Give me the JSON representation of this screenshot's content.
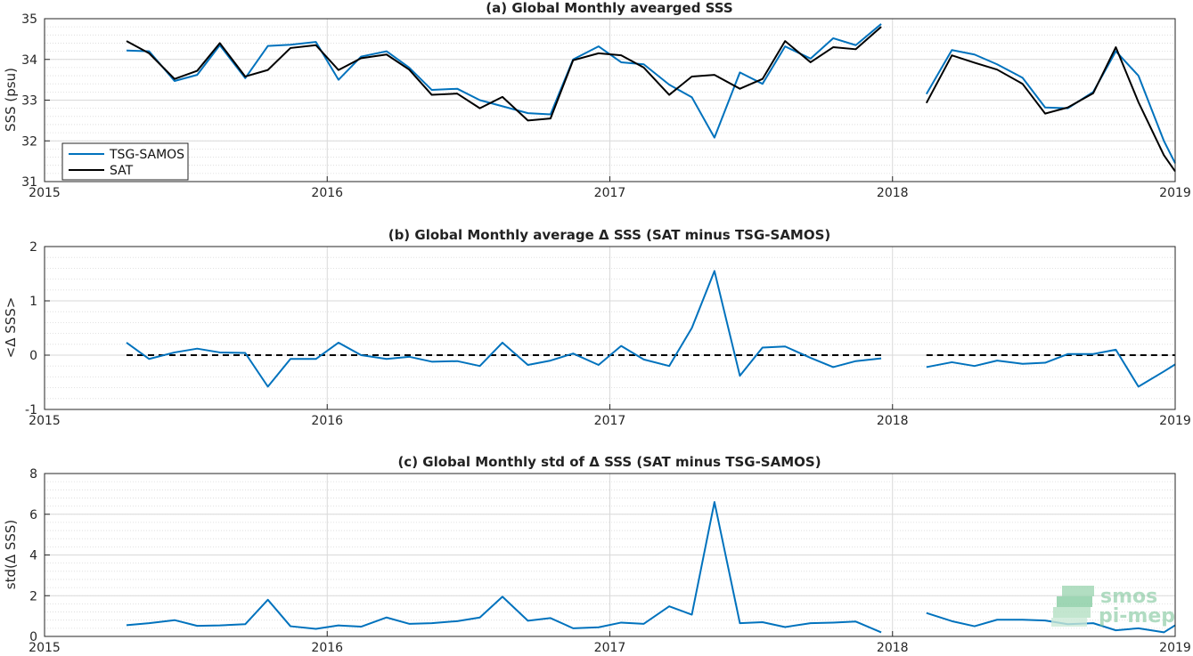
{
  "watermark": {
    "line1": "smos",
    "line2": "pi-mep",
    "color": "#6dbf8f"
  },
  "colors": {
    "tsg": "#0072BD",
    "sat": "#000000",
    "zero_line": "#000000",
    "grid": "#d9d9d9"
  },
  "chart_data": [
    {
      "id": "a",
      "type": "line",
      "title": "(a) Global Monthly avearged SSS",
      "ylabel": "SSS (psu)",
      "xlim": [
        2015,
        2019
      ],
      "ylim": [
        31,
        35
      ],
      "xticks": [
        2015,
        2016,
        2017,
        2018,
        2019
      ],
      "xtick_labels": [
        "2015",
        "2016",
        "2017",
        "2018",
        "2019"
      ],
      "yticks": [
        31,
        32,
        33,
        34,
        35
      ],
      "ytick_labels": [
        "31",
        "32",
        "33",
        "34",
        "35"
      ],
      "grid": true,
      "legend": {
        "placement": "bottom-left",
        "entries": [
          "TSG-SAMOS",
          "SAT"
        ]
      },
      "series": [
        {
          "name": "TSG-SAMOS",
          "color": "#0072BD",
          "x": [
            2015.29,
            2015.37,
            2015.46,
            2015.54,
            2015.62,
            2015.71,
            2015.79,
            2015.87,
            2015.96,
            2016.04,
            2016.12,
            2016.21,
            2016.29,
            2016.37,
            2016.46,
            2016.54,
            2016.62,
            2016.71,
            2016.79,
            2016.87,
            2016.96,
            2017.04,
            2017.12,
            2017.21,
            2017.29,
            2017.37,
            2017.46,
            2017.54,
            2017.62,
            2017.71,
            2017.79,
            2017.87,
            2017.96,
            null,
            2018.12,
            2018.21,
            2018.29,
            2018.37,
            2018.46,
            2018.54,
            2018.62,
            2018.71,
            2018.79,
            2018.87,
            2018.96,
            2019.0
          ],
          "y": [
            34.22,
            34.2,
            33.47,
            33.62,
            34.35,
            33.54,
            34.33,
            34.36,
            34.43,
            33.5,
            34.07,
            34.2,
            33.8,
            33.25,
            33.28,
            33.0,
            32.85,
            32.68,
            32.65,
            34.0,
            34.32,
            33.93,
            33.88,
            33.38,
            33.07,
            32.08,
            33.68,
            33.4,
            34.32,
            34.02,
            34.52,
            34.35,
            34.87,
            null,
            33.15,
            34.23,
            34.12,
            33.88,
            33.55,
            32.82,
            32.8,
            33.2,
            34.2,
            33.6,
            32.0,
            31.45
          ]
        },
        {
          "name": "SAT",
          "color": "#000000",
          "x": [
            2015.29,
            2015.37,
            2015.46,
            2015.54,
            2015.62,
            2015.71,
            2015.79,
            2015.87,
            2015.96,
            2016.04,
            2016.12,
            2016.21,
            2016.29,
            2016.37,
            2016.46,
            2016.54,
            2016.62,
            2016.71,
            2016.79,
            2016.87,
            2016.96,
            2017.04,
            2017.12,
            2017.21,
            2017.29,
            2017.37,
            2017.46,
            2017.54,
            2017.62,
            2017.71,
            2017.79,
            2017.87,
            2017.96,
            null,
            2018.12,
            2018.21,
            2018.29,
            2018.37,
            2018.46,
            2018.54,
            2018.62,
            2018.71,
            2018.79,
            2018.87,
            2018.96,
            2019.0
          ],
          "y": [
            34.45,
            34.15,
            33.52,
            33.72,
            34.4,
            33.58,
            33.74,
            34.28,
            34.35,
            33.74,
            34.03,
            34.12,
            33.75,
            33.13,
            33.16,
            32.8,
            33.08,
            32.5,
            32.55,
            33.98,
            34.15,
            34.1,
            33.8,
            33.13,
            33.58,
            33.62,
            33.28,
            33.52,
            34.45,
            33.93,
            34.3,
            34.25,
            34.8,
            null,
            32.93,
            34.1,
            33.92,
            33.75,
            33.4,
            32.67,
            32.82,
            33.17,
            34.3,
            32.95,
            31.65,
            31.25
          ]
        }
      ]
    },
    {
      "id": "b",
      "type": "line",
      "title": "(b) Global Monthly average Δ SSS (SAT minus TSG-SAMOS)",
      "ylabel": "<Δ SSS>",
      "xlim": [
        2015,
        2019
      ],
      "ylim": [
        -1,
        2
      ],
      "xticks": [
        2015,
        2016,
        2017,
        2018,
        2019
      ],
      "xtick_labels": [
        "2015",
        "2016",
        "2017",
        "2018",
        "2019"
      ],
      "yticks": [
        -1,
        0,
        1,
        2
      ],
      "ytick_labels": [
        "-1",
        "0",
        "1",
        "2"
      ],
      "grid": true,
      "zero_lines": [
        [
          2015.29,
          2017.96
        ],
        [
          2018.12,
          2019.0
        ]
      ],
      "series": [
        {
          "name": "",
          "color": "#0072BD",
          "x": [
            2015.29,
            2015.37,
            2015.46,
            2015.54,
            2015.62,
            2015.71,
            2015.79,
            2015.87,
            2015.96,
            2016.04,
            2016.12,
            2016.21,
            2016.29,
            2016.37,
            2016.46,
            2016.54,
            2016.62,
            2016.71,
            2016.79,
            2016.87,
            2016.96,
            2017.04,
            2017.12,
            2017.21,
            2017.29,
            2017.37,
            2017.46,
            2017.54,
            2017.62,
            2017.71,
            2017.79,
            2017.87,
            2017.96,
            null,
            2018.12,
            2018.21,
            2018.29,
            2018.37,
            2018.46,
            2018.54,
            2018.62,
            2018.71,
            2018.79,
            2018.87,
            2018.96,
            2019.0
          ],
          "y": [
            0.23,
            -0.07,
            0.05,
            0.12,
            0.05,
            0.04,
            -0.58,
            -0.07,
            -0.07,
            0.23,
            0.0,
            -0.07,
            -0.03,
            -0.12,
            -0.11,
            -0.2,
            0.23,
            -0.18,
            -0.1,
            0.03,
            -0.18,
            0.17,
            -0.08,
            -0.2,
            0.5,
            1.55,
            -0.38,
            0.14,
            0.16,
            -0.05,
            -0.22,
            -0.11,
            -0.06,
            null,
            -0.22,
            -0.13,
            -0.2,
            -0.1,
            -0.16,
            -0.14,
            0.02,
            0.02,
            0.1,
            -0.58,
            -0.3,
            -0.17
          ]
        }
      ]
    },
    {
      "id": "c",
      "type": "line",
      "title": "(c) Global Monthly std of Δ SSS (SAT minus TSG-SAMOS)",
      "ylabel": "std(Δ SSS)",
      "xlim": [
        2015,
        2019
      ],
      "ylim": [
        0,
        8
      ],
      "xticks": [
        2015,
        2016,
        2017,
        2018,
        2019
      ],
      "xtick_labels": [
        "2015",
        "2016",
        "2017",
        "2018",
        "2019"
      ],
      "yticks": [
        0,
        2,
        4,
        6,
        8
      ],
      "ytick_labels": [
        "0",
        "2",
        "4",
        "6",
        "8"
      ],
      "grid": true,
      "series": [
        {
          "name": "",
          "color": "#0072BD",
          "x": [
            2015.29,
            2015.37,
            2015.46,
            2015.54,
            2015.62,
            2015.71,
            2015.79,
            2015.87,
            2015.96,
            2016.04,
            2016.12,
            2016.21,
            2016.29,
            2016.37,
            2016.46,
            2016.54,
            2016.62,
            2016.71,
            2016.79,
            2016.87,
            2016.96,
            2017.04,
            2017.12,
            2017.21,
            2017.29,
            2017.37,
            2017.46,
            2017.54,
            2017.62,
            2017.71,
            2017.79,
            2017.87,
            2017.96,
            null,
            2018.12,
            2018.21,
            2018.29,
            2018.37,
            2018.46,
            2018.54,
            2018.62,
            2018.71,
            2018.79,
            2018.87,
            2018.96,
            2019.0
          ],
          "y": [
            0.55,
            0.65,
            0.8,
            0.52,
            0.54,
            0.6,
            1.8,
            0.5,
            0.37,
            0.54,
            0.48,
            0.93,
            0.62,
            0.65,
            0.75,
            0.93,
            1.95,
            0.77,
            0.9,
            0.4,
            0.45,
            0.68,
            0.62,
            1.48,
            1.07,
            6.6,
            0.65,
            0.7,
            0.46,
            0.65,
            0.68,
            0.73,
            0.2,
            null,
            1.15,
            0.75,
            0.5,
            0.82,
            0.82,
            0.78,
            0.6,
            0.65,
            0.3,
            0.4,
            0.2,
            0.55
          ]
        }
      ]
    }
  ]
}
